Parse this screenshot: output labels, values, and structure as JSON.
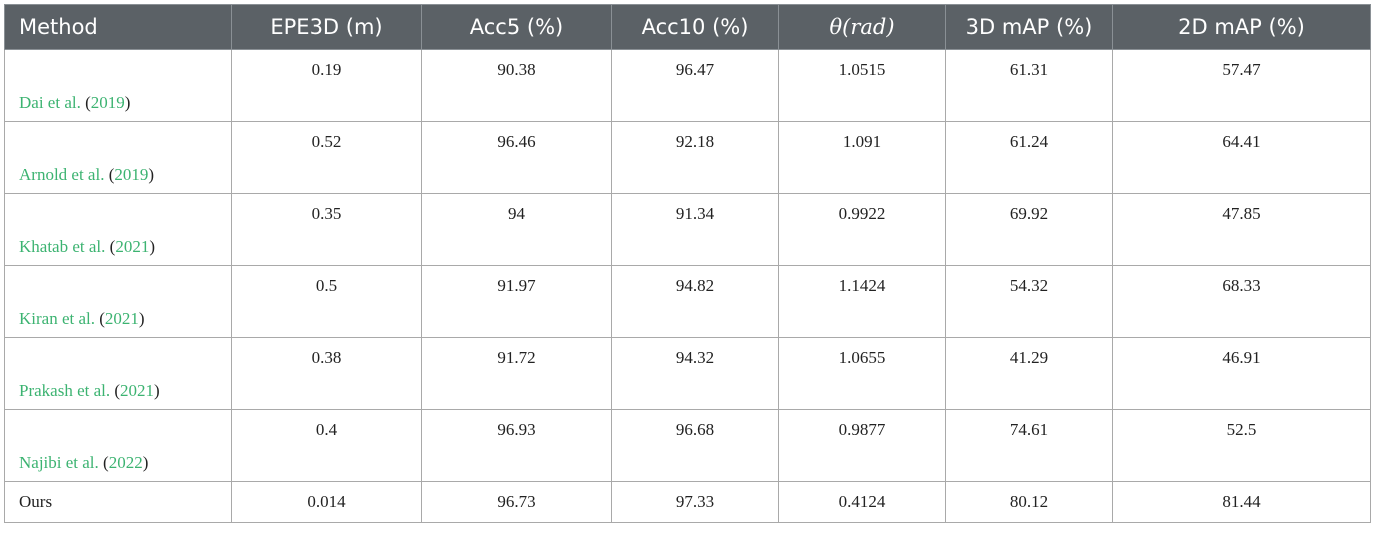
{
  "columns": [
    "Method",
    "EPE3D (m)",
    "Acc5 (%)",
    "Acc10 (%)",
    "θ(rad)",
    "3D mAP (%)",
    "2D mAP (%)"
  ],
  "rows": [
    {
      "author": "Dai et al.",
      "year": "2019",
      "values": [
        "0.19",
        "90.38",
        "96.47",
        "1.0515",
        "61.31",
        "57.47"
      ]
    },
    {
      "author": "Arnold et al.",
      "year": "2019",
      "values": [
        "0.52",
        "96.46",
        "92.18",
        "1.091",
        "61.24",
        "64.41"
      ]
    },
    {
      "author": "Khatab et al.",
      "year": "2021",
      "values": [
        "0.35",
        "94",
        "91.34",
        "0.9922",
        "69.92",
        "47.85"
      ]
    },
    {
      "author": "Kiran et al.",
      "year": "2021",
      "values": [
        "0.5",
        "91.97",
        "94.82",
        "1.1424",
        "54.32",
        "68.33"
      ]
    },
    {
      "author": "Prakash et al.",
      "year": "2021",
      "values": [
        "0.38",
        "91.72",
        "94.32",
        "1.0655",
        "41.29",
        "46.91"
      ]
    },
    {
      "author": "Najibi et al.",
      "year": "2022",
      "values": [
        "0.4",
        "96.93",
        "96.68",
        "0.9877",
        "74.61",
        "52.5"
      ]
    }
  ],
  "ours": {
    "label": "Ours",
    "values": [
      "0.014",
      "96.73",
      "97.33",
      "0.4124",
      "80.12",
      "81.44"
    ]
  },
  "colors": {
    "header_bg": "#5b6166",
    "citation": "#3cb371",
    "border": "#a9a9a9"
  }
}
